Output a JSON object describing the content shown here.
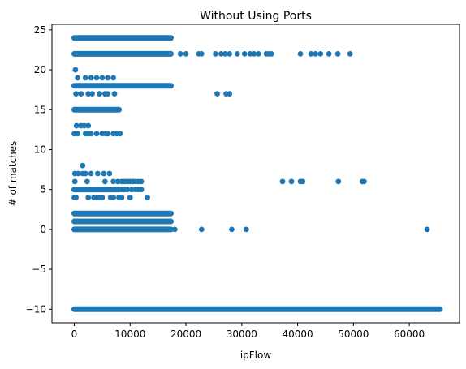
{
  "colors": {
    "marker": "#1f77b4"
  },
  "chart_data": {
    "type": "scatter",
    "title": "Without Using Ports",
    "xlabel": "ipFlow",
    "ylabel": "# of matches",
    "xlim": [
      -4000,
      69000
    ],
    "ylim": [
      -11.7,
      25.7
    ],
    "xticks": [
      0,
      10000,
      20000,
      30000,
      40000,
      50000,
      60000
    ],
    "xtick_labels": [
      "0",
      "10000",
      "20000",
      "30000",
      "40000",
      "50000",
      "60000"
    ],
    "yticks": [
      -10,
      -5,
      0,
      5,
      10,
      15,
      20,
      25
    ],
    "ytick_labels": [
      "−10",
      "−5",
      "0",
      "5",
      "10",
      "15",
      "20",
      "25"
    ],
    "grid": false,
    "series": [
      {
        "dense_bands": [
          {
            "y": 24,
            "x": [
              0,
              17300
            ]
          },
          {
            "y": 22,
            "x": [
              0,
              17300
            ]
          },
          {
            "y": 18,
            "x": [
              0,
              17300
            ]
          },
          {
            "y": 15,
            "x": [
              0,
              8000
            ]
          },
          {
            "y": 5,
            "x": [
              0,
              8000
            ]
          },
          {
            "y": 2,
            "x": [
              0,
              17300
            ]
          },
          {
            "y": 1,
            "x": [
              0,
              17300
            ]
          },
          {
            "y": 0,
            "x": [
              0,
              17300
            ]
          },
          {
            "y": -10,
            "x": [
              0,
              65500
            ]
          }
        ],
        "points": [
          [
            19000,
            22
          ],
          [
            20000,
            22
          ],
          [
            22300,
            22
          ],
          [
            22800,
            22
          ],
          [
            25300,
            22
          ],
          [
            26300,
            22
          ],
          [
            27000,
            22
          ],
          [
            27800,
            22
          ],
          [
            29200,
            22
          ],
          [
            30500,
            22
          ],
          [
            31500,
            22
          ],
          [
            32200,
            22
          ],
          [
            33000,
            22
          ],
          [
            34400,
            22
          ],
          [
            34900,
            22
          ],
          [
            35300,
            22
          ],
          [
            40500,
            22
          ],
          [
            42400,
            22
          ],
          [
            43200,
            22
          ],
          [
            44100,
            22
          ],
          [
            45600,
            22
          ],
          [
            47200,
            22
          ],
          [
            49400,
            22
          ],
          [
            200,
            20
          ],
          [
            600,
            19
          ],
          [
            2000,
            19
          ],
          [
            3000,
            19
          ],
          [
            4000,
            19
          ],
          [
            5000,
            19
          ],
          [
            6000,
            19
          ],
          [
            7000,
            19
          ],
          [
            300,
            17
          ],
          [
            1200,
            17
          ],
          [
            2500,
            17
          ],
          [
            3200,
            17
          ],
          [
            4500,
            17
          ],
          [
            5500,
            17
          ],
          [
            6000,
            17
          ],
          [
            7200,
            17
          ],
          [
            25600,
            17
          ],
          [
            27200,
            17
          ],
          [
            27800,
            17
          ],
          [
            400,
            13
          ],
          [
            1200,
            13
          ],
          [
            1800,
            13
          ],
          [
            2500,
            13
          ],
          [
            0,
            12
          ],
          [
            600,
            12
          ],
          [
            2000,
            12
          ],
          [
            2500,
            12
          ],
          [
            3000,
            12
          ],
          [
            4000,
            12
          ],
          [
            5000,
            12
          ],
          [
            5600,
            12
          ],
          [
            6000,
            12
          ],
          [
            7000,
            12
          ],
          [
            7600,
            12
          ],
          [
            8200,
            12
          ],
          [
            1500,
            8
          ],
          [
            100,
            7
          ],
          [
            700,
            7
          ],
          [
            1500,
            7
          ],
          [
            2000,
            7
          ],
          [
            3000,
            7
          ],
          [
            4200,
            7
          ],
          [
            5300,
            7
          ],
          [
            6300,
            7
          ],
          [
            100,
            6
          ],
          [
            2300,
            6
          ],
          [
            5500,
            6
          ],
          [
            7000,
            6
          ],
          [
            7800,
            6
          ],
          [
            8500,
            6
          ],
          [
            9000,
            6
          ],
          [
            9500,
            6
          ],
          [
            10000,
            6
          ],
          [
            10500,
            6
          ],
          [
            11000,
            6
          ],
          [
            11500,
            6
          ],
          [
            12000,
            6
          ],
          [
            37300,
            6
          ],
          [
            38900,
            6
          ],
          [
            40500,
            6
          ],
          [
            40900,
            6
          ],
          [
            47300,
            6
          ],
          [
            51600,
            6
          ],
          [
            51900,
            6
          ],
          [
            8500,
            5
          ],
          [
            9000,
            5
          ],
          [
            9500,
            5
          ],
          [
            10300,
            5
          ],
          [
            11000,
            5
          ],
          [
            11500,
            5
          ],
          [
            12000,
            5
          ],
          [
            0,
            4
          ],
          [
            300,
            4
          ],
          [
            2500,
            4
          ],
          [
            3500,
            4
          ],
          [
            4000,
            4
          ],
          [
            4500,
            4
          ],
          [
            5000,
            4
          ],
          [
            6500,
            4
          ],
          [
            7000,
            4
          ],
          [
            8000,
            4
          ],
          [
            8500,
            4
          ],
          [
            10000,
            4
          ],
          [
            13100,
            4
          ],
          [
            18000,
            0
          ],
          [
            22800,
            0
          ],
          [
            28200,
            0
          ],
          [
            30800,
            0
          ],
          [
            63200,
            0
          ]
        ]
      }
    ]
  }
}
